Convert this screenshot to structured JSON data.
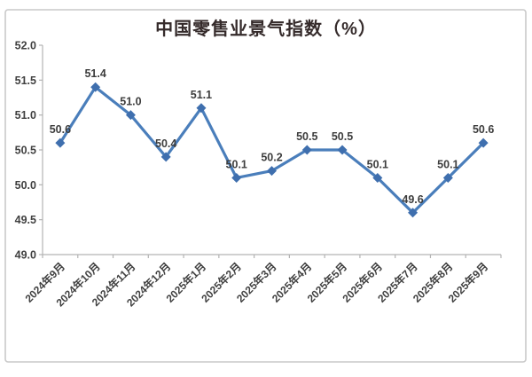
{
  "chart_data": {
    "type": "line",
    "title": "中国零售业景气指数（%）",
    "categories": [
      "2024年9月",
      "2024年10月",
      "2024年11月",
      "2024年12月",
      "2025年1月",
      "2025年2月",
      "2025年3月",
      "2025年4月",
      "2025年5月",
      "2025年6月",
      "2025年7月",
      "2025年8月",
      "2025年9月"
    ],
    "series": [
      {
        "name": "中国零售业景气指数",
        "values": [
          50.6,
          51.4,
          51.0,
          50.4,
          51.1,
          50.1,
          50.2,
          50.5,
          50.5,
          50.1,
          49.6,
          50.1,
          50.6
        ]
      }
    ],
    "data_labels": [
      "50.6",
      "51.4",
      "51.0",
      "50.4",
      "51.1",
      "50.1",
      "50.2",
      "50.5",
      "50.5",
      "50.1",
      "49.6",
      "50.1",
      "50.6"
    ],
    "ylim": [
      49.0,
      52.0
    ],
    "ytick_labels": [
      "49.0",
      "49.5",
      "50.0",
      "50.5",
      "51.0",
      "51.5",
      "52.0"
    ],
    "grid": "off",
    "legend": "none",
    "marker": "diamond",
    "colors": {
      "line": "#4a7ebb",
      "marker": "#3f6fae",
      "tick_label": "#404040",
      "data_label": "#3d3d3d",
      "axis": "#b3b3b3",
      "title": "#352b2b",
      "frame": "#c9c9c9",
      "background": "#ffffff"
    }
  }
}
